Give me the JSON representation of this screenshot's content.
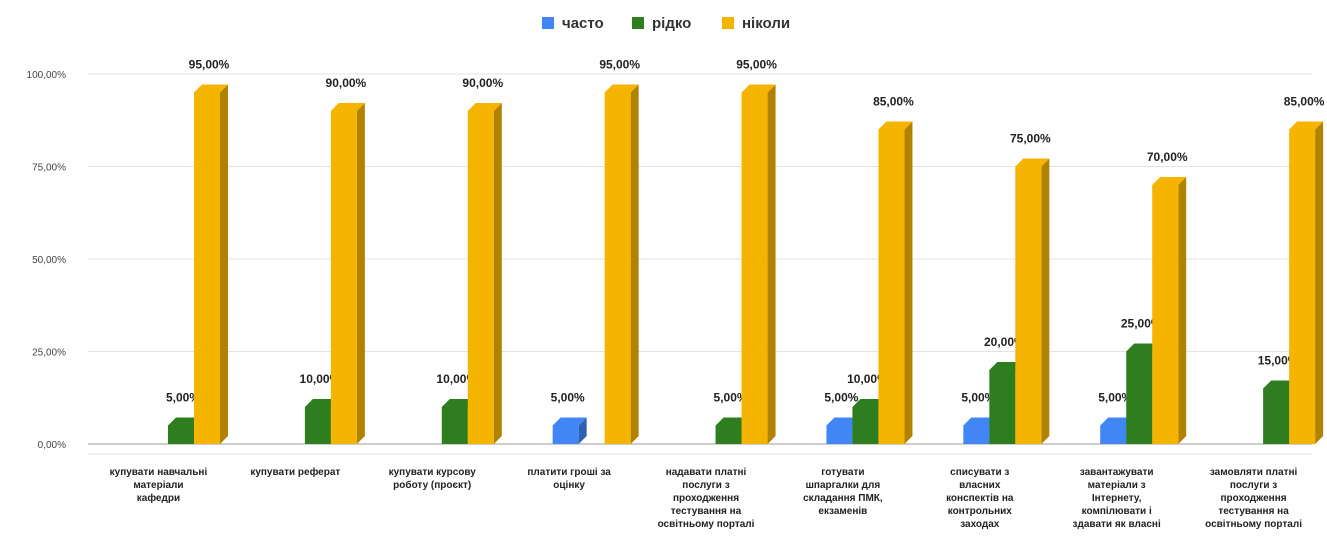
{
  "chart_data": {
    "type": "bar",
    "title": "",
    "xlabel": "",
    "ylabel": "",
    "ylim": [
      0,
      100
    ],
    "y_ticks": [
      "0,00%",
      "25,00%",
      "50,00%",
      "75,00%",
      "100,00%"
    ],
    "legend_position": "top",
    "grid": true,
    "categories": [
      [
        "купувати навчальні",
        "матеріали",
        "кафедри"
      ],
      [
        "купувати реферат"
      ],
      [
        "купувати курсову",
        "роботу (проєкт)"
      ],
      [
        "платити гроші за",
        "оцінку"
      ],
      [
        "надавати платні",
        "послуги з",
        "проходження",
        "тестування на",
        "освітньому порталі"
      ],
      [
        "готувати",
        "шпаргалки для",
        "складання ПМК,",
        "екзаменів"
      ],
      [
        "списувати з",
        "власних",
        "конспектів на",
        "контрольних",
        "заходах"
      ],
      [
        "завантажувати",
        "матеріали з",
        "Інтернету,",
        "компілювати і",
        "здавати як власні"
      ],
      [
        "замовляти платні",
        "послуги з",
        "проходження",
        "тестування на",
        "освітньому порталі"
      ]
    ],
    "series": [
      {
        "name": "часто",
        "color": "#4285F4",
        "values": [
          0,
          0,
          0,
          5,
          0,
          5,
          5,
          5,
          0
        ],
        "labels": [
          "",
          "",
          "",
          "5,00%",
          "",
          "5,00%",
          "5,00%",
          "5,00%",
          ""
        ]
      },
      {
        "name": "рідко",
        "color": "#2E7D1E",
        "values": [
          5,
          10,
          10,
          0,
          5,
          10,
          20,
          25,
          15
        ],
        "labels": [
          "5,00%",
          "10,00%",
          "10,00%",
          "",
          "5,00%",
          "10,00%",
          "20,00%",
          "25,00%",
          "15,00%"
        ]
      },
      {
        "name": "ніколи",
        "color": "#F4B400",
        "values": [
          95,
          90,
          90,
          95,
          95,
          85,
          75,
          70,
          85
        ],
        "labels": [
          "95,00%",
          "90,00%",
          "90,00%",
          "95,00%",
          "95,00%",
          "85,00%",
          "75,00%",
          "70,00%",
          "85,00%"
        ]
      }
    ]
  }
}
